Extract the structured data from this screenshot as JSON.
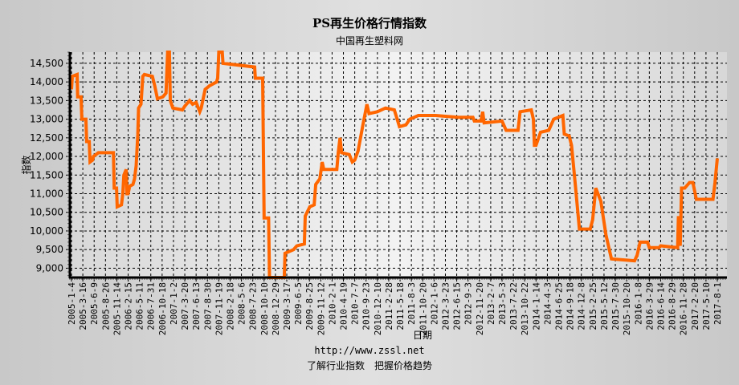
{
  "chart_data": {
    "type": "line",
    "title": "PS再生价格行情指数",
    "subtitle": "中国再生塑料网",
    "xlabel": "日期",
    "ylabel": "指数",
    "ylim": [
      8750,
      14800
    ],
    "yticks": [
      9000,
      9500,
      10000,
      10500,
      11000,
      11500,
      12000,
      12500,
      13000,
      13500,
      14000,
      14500
    ],
    "ytick_labels": [
      "9,000",
      "9,500",
      "10,000",
      "10,500",
      "11,000",
      "11,500",
      "12,000",
      "12,500",
      "13,000",
      "13,500",
      "14,000",
      "14,500"
    ],
    "xtick_labels": [
      "2005-1-4",
      "2005-3-16",
      "2005-6-9",
      "2005-8-26",
      "2005-11-14",
      "2006-2-15",
      "2006-5-11",
      "2006-7-31",
      "2006-10-18",
      "2007-1-2",
      "2007-3-20",
      "2007-6-13",
      "2007-8-30",
      "2007-11-19",
      "2008-2-18",
      "2008-5-6",
      "2008-7-23",
      "2008-10-10",
      "2008-12-29",
      "2009-3-17",
      "2009-6-5",
      "2009-8-25",
      "2009-11-12",
      "2010-2-1",
      "2010-4-19",
      "2010-7-7",
      "2010-9-23",
      "2010-12-10",
      "2011-2-28",
      "2011-5-18",
      "2011-8-3",
      "2011-10-20",
      "2012-1-6",
      "2012-3-23",
      "2012-6-15",
      "2012-9-3",
      "2012-11-20",
      "2013-2-7",
      "2013-5-3",
      "2013-7-22",
      "2013-10-22",
      "2014-1-14",
      "2014-4-3",
      "2014-6-25",
      "2014-9-18",
      "2014-12-8",
      "2015-2-25",
      "2015-5-12",
      "2015-7-30",
      "2015-10-20",
      "2016-1-8",
      "2016-3-29",
      "2016-6-14",
      "2016-8-29",
      "2016-11-28",
      "2017-2-20",
      "2017-5-10",
      "2017-8-1"
    ],
    "grid": true,
    "line_color": "#ff6600",
    "series": [
      {
        "points": [
          [
            "2005-1-4",
            13800
          ],
          [
            "2005-1-9",
            14150
          ],
          [
            "2005-2-8",
            14200
          ],
          [
            "2005-2-12",
            13600
          ],
          [
            "2005-3-5",
            13600
          ],
          [
            "2005-3-10",
            13000
          ],
          [
            "2005-4-8",
            13000
          ],
          [
            "2005-4-14",
            12400
          ],
          [
            "2005-5-3",
            12400
          ],
          [
            "2005-5-9",
            11850
          ],
          [
            "2005-5-27",
            11900
          ],
          [
            "2005-6-4",
            12000
          ],
          [
            "2005-7-8",
            12100
          ],
          [
            "2005-10-21",
            12100
          ],
          [
            "2005-10-27",
            11150
          ],
          [
            "2005-11-12",
            11150
          ],
          [
            "2005-11-17",
            10650
          ],
          [
            "2005-12-22",
            10700
          ],
          [
            "2006-1-2",
            11000
          ],
          [
            "2006-1-11",
            11500
          ],
          [
            "2006-1-30",
            11650
          ],
          [
            "2006-2-4",
            11000
          ],
          [
            "2006-2-15",
            11000
          ],
          [
            "2006-2-26",
            11200
          ],
          [
            "2006-3-23",
            11250
          ],
          [
            "2006-4-4",
            11400
          ],
          [
            "2006-4-16",
            11750
          ],
          [
            "2006-4-29",
            12600
          ],
          [
            "2006-5-4",
            13300
          ],
          [
            "2006-5-22",
            13400
          ],
          [
            "2006-6-4",
            14150
          ],
          [
            "2006-6-15",
            14200
          ],
          [
            "2006-8-11",
            14150
          ],
          [
            "2006-8-27",
            13900
          ],
          [
            "2006-9-15",
            13550
          ],
          [
            "2006-10-23",
            13600
          ],
          [
            "2006-11-13",
            13700
          ],
          [
            "2006-11-24",
            14800
          ],
          [
            "2006-12-6",
            14800
          ],
          [
            "2006-12-12",
            13500
          ],
          [
            "2006-12-29",
            13300
          ],
          [
            "2007-3-4",
            13250
          ],
          [
            "2007-3-20",
            13350
          ],
          [
            "2007-4-25",
            13500
          ],
          [
            "2007-5-18",
            13400
          ],
          [
            "2007-6-13",
            13450
          ],
          [
            "2007-7-8",
            13200
          ],
          [
            "2007-7-18",
            13300
          ],
          [
            "2007-8-14",
            13800
          ],
          [
            "2007-9-15",
            13900
          ],
          [
            "2007-11-3",
            14000
          ],
          [
            "2007-11-11",
            14100
          ],
          [
            "2007-11-19",
            14800
          ],
          [
            "2007-12-17",
            14800
          ],
          [
            "2007-12-23",
            14500
          ],
          [
            "2008-8-5",
            14400
          ],
          [
            "2008-8-10",
            14100
          ],
          [
            "2008-9-30",
            14100
          ],
          [
            "2008-10-10",
            10350
          ],
          [
            "2008-11-11",
            10350
          ],
          [
            "2008-11-17",
            8750
          ],
          [
            "2009-2-28",
            8750
          ],
          [
            "2009-3-5",
            9400
          ],
          [
            "2009-5-4",
            9500
          ],
          [
            "2009-5-27",
            9600
          ],
          [
            "2009-7-20",
            9650
          ],
          [
            "2009-7-26",
            10400
          ],
          [
            "2009-8-28",
            10650
          ],
          [
            "2009-9-27",
            10700
          ],
          [
            "2009-10-8",
            11250
          ],
          [
            "2009-11-6",
            11400
          ],
          [
            "2009-11-22",
            11850
          ],
          [
            "2009-12-4",
            11650
          ],
          [
            "2010-3-5",
            11650
          ],
          [
            "2010-3-15",
            12100
          ],
          [
            "2010-3-27",
            12500
          ],
          [
            "2010-4-7",
            12100
          ],
          [
            "2010-5-30",
            12050
          ],
          [
            "2010-6-20",
            11850
          ],
          [
            "2010-7-7",
            11900
          ],
          [
            "2010-7-30",
            12150
          ],
          [
            "2010-8-30",
            12800
          ],
          [
            "2010-9-29",
            13400
          ],
          [
            "2010-10-13",
            13150
          ],
          [
            "2010-12-10",
            13200
          ],
          [
            "2011-2-5",
            13300
          ],
          [
            "2011-4-8",
            13250
          ],
          [
            "2011-5-14",
            12800
          ],
          [
            "2011-6-27",
            12850
          ],
          [
            "2011-7-23",
            13000
          ],
          [
            "2011-9-20",
            13100
          ],
          [
            "2012-1-16",
            13100
          ],
          [
            "2012-6-27",
            13050
          ],
          [
            "2012-10-6",
            13050
          ],
          [
            "2012-10-16",
            12950
          ],
          [
            "2012-12-1",
            12950
          ],
          [
            "2012-12-13",
            13200
          ],
          [
            "2012-12-23",
            12900
          ],
          [
            "2013-5-3",
            12950
          ],
          [
            "2013-6-1",
            12700
          ],
          [
            "2013-8-29",
            12700
          ],
          [
            "2013-9-15",
            13200
          ],
          [
            "2013-12-10",
            13250
          ],
          [
            "2013-12-25",
            13000
          ],
          [
            "2014-1-2",
            12300
          ],
          [
            "2014-1-14",
            12300
          ],
          [
            "2014-2-14",
            12650
          ],
          [
            "2014-4-13",
            12700
          ],
          [
            "2014-5-20",
            13000
          ],
          [
            "2014-7-26",
            13100
          ],
          [
            "2014-8-6",
            12600
          ],
          [
            "2014-9-12",
            12550
          ],
          [
            "2014-9-29",
            12300
          ],
          [
            "2014-10-27",
            11200
          ],
          [
            "2014-11-24",
            10050
          ],
          [
            "2015-2-8",
            10050
          ],
          [
            "2015-2-25",
            10300
          ],
          [
            "2015-3-18",
            11150
          ],
          [
            "2015-4-21",
            10800
          ],
          [
            "2015-5-25",
            9900
          ],
          [
            "2015-7-3",
            9250
          ],
          [
            "2015-12-15",
            9200
          ],
          [
            "2016-1-2",
            9350
          ],
          [
            "2016-1-23",
            9700
          ],
          [
            "2016-3-16",
            9700
          ],
          [
            "2016-3-29",
            9550
          ],
          [
            "2016-6-3",
            9550
          ],
          [
            "2016-6-14",
            9600
          ],
          [
            "2016-10-13",
            9550
          ],
          [
            "2016-10-20",
            10400
          ],
          [
            "2016-11-3",
            9600
          ],
          [
            "2016-11-14",
            11150
          ],
          [
            "2016-12-8",
            11150
          ],
          [
            "2017-1-13",
            11300
          ],
          [
            "2017-2-7",
            11300
          ],
          [
            "2017-3-4",
            10850
          ],
          [
            "2017-6-30",
            10850
          ],
          [
            "2017-7-15",
            11300
          ],
          [
            "2017-8-1",
            11950
          ]
        ]
      }
    ]
  },
  "footer": {
    "url": "http://www.zssl.net",
    "slogan": "了解行业指数　把握价格趋势"
  }
}
